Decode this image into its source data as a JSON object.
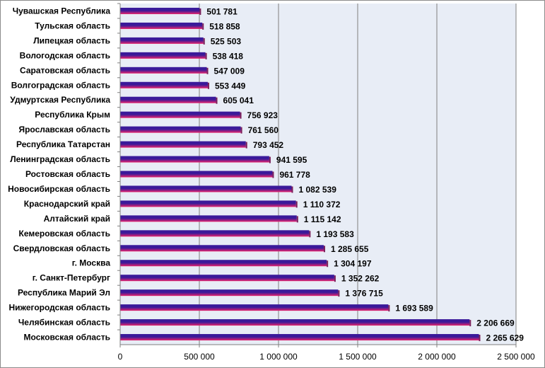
{
  "chart_data": {
    "type": "bar",
    "orientation": "horizontal",
    "title": "",
    "xlabel": "",
    "ylabel": "",
    "xlim": [
      0,
      2500000
    ],
    "grid": true,
    "legend": "none",
    "colors": {
      "bar_top": "#3a1a9a",
      "bar_bottom": "#e8246c",
      "plot_bg": "#e8edf6",
      "gridline": "#7f7f7f"
    },
    "categories": [
      "Чувашская Республика",
      "Тульская область",
      "Липецкая область",
      "Вологодская область",
      "Саратовская область",
      "Волгоградская область",
      "Удмуртская Республика",
      "Республика Крым",
      "Ярославская область",
      "Республика Татарстан",
      "Ленинградская область",
      "Ростовская область",
      "Новосибирская область",
      "Краснодарский край",
      "Алтайский край",
      "Кемеровская область",
      "Свердловская область",
      "г. Москва",
      "г. Санкт-Петербург",
      "Республика Марий Эл",
      "Нижегородская область",
      "Челябинская область",
      "Московская область"
    ],
    "values": [
      501781,
      518858,
      525503,
      538418,
      547009,
      553449,
      605041,
      756923,
      761560,
      793452,
      941595,
      961778,
      1082539,
      1110372,
      1115142,
      1193583,
      1285655,
      1304197,
      1352262,
      1376715,
      1693589,
      2206669,
      2265629
    ],
    "value_labels": [
      "501 781",
      "518 858",
      "525 503",
      "538 418",
      "547 009",
      "553 449",
      "605 041",
      "756 923",
      "761 560",
      "793 452",
      "941 595",
      "961 778",
      "1 082 539",
      "1 110 372",
      "1 115 142",
      "1 193 583",
      "1 285 655",
      "1 304 197",
      "1 352 262",
      "1 376 715",
      "1 693 589",
      "2 206 669",
      "2 265 629"
    ],
    "ticks": [
      0,
      500000,
      1000000,
      1500000,
      2000000,
      2500000
    ],
    "tick_labels": [
      "0",
      "500 000",
      "1 000 000",
      "1 500 000",
      "2 000 000",
      "2 500 000"
    ]
  }
}
